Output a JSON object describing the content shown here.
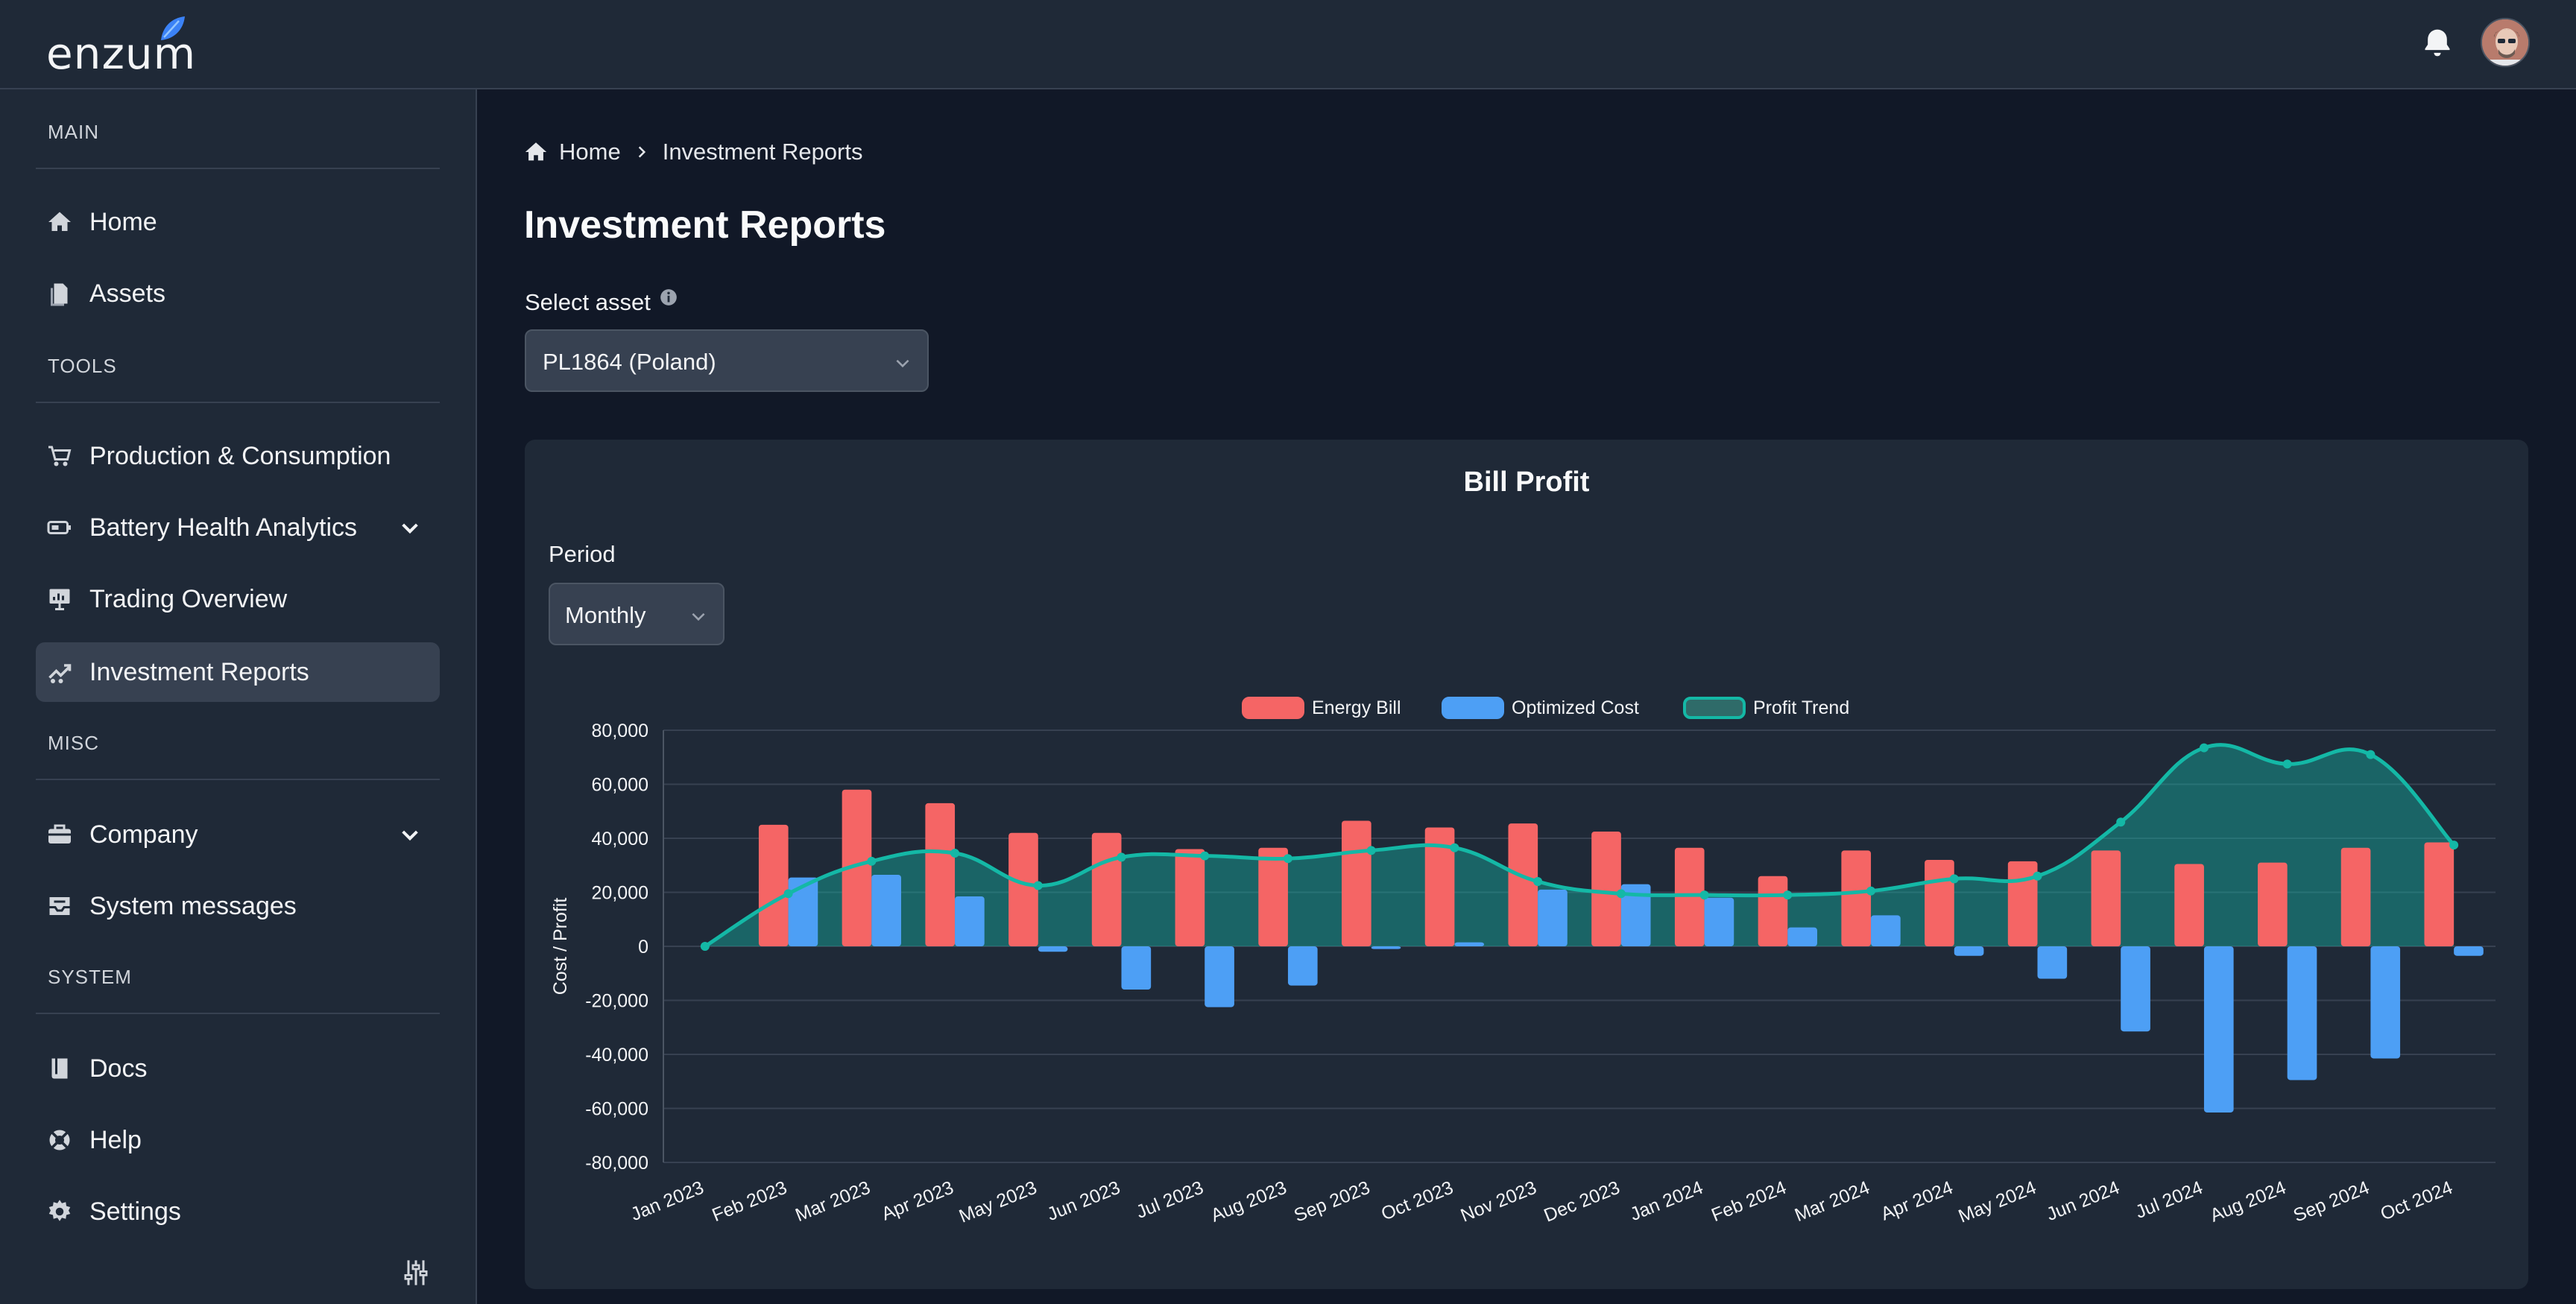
{
  "app": {
    "logo_text": "enzum"
  },
  "topbar": {
    "bell_icon": "bell-icon",
    "avatar_icon": "user-avatar"
  },
  "sidebar": {
    "sections": [
      {
        "label": "MAIN",
        "items": [
          {
            "label": "Home",
            "icon": "home-icon"
          },
          {
            "label": "Assets",
            "icon": "document-icon"
          }
        ]
      },
      {
        "label": "TOOLS",
        "items": [
          {
            "label": "Production & Consumption",
            "icon": "cart-icon"
          },
          {
            "label": "Battery Health Analytics",
            "icon": "battery-icon",
            "expandable": true
          },
          {
            "label": "Trading Overview",
            "icon": "presentation-chart-icon"
          },
          {
            "label": "Investment Reports",
            "icon": "chart-line-icon",
            "active": true
          }
        ]
      },
      {
        "label": "MISC",
        "items": [
          {
            "label": "Company",
            "icon": "briefcase-icon",
            "expandable": true
          },
          {
            "label": "System messages",
            "icon": "inbox-icon"
          }
        ]
      },
      {
        "label": "SYSTEM",
        "items": [
          {
            "label": "Docs",
            "icon": "book-icon"
          },
          {
            "label": "Help",
            "icon": "lifebuoy-icon"
          },
          {
            "label": "Settings",
            "icon": "gear-icon"
          }
        ]
      }
    ]
  },
  "breadcrumb": {
    "home": "Home",
    "current": "Investment Reports"
  },
  "page": {
    "title": "Investment Reports",
    "asset_label": "Select asset",
    "asset_value": "PL1864 (Poland)"
  },
  "card": {
    "title": "Bill Profit",
    "period_label": "Period",
    "period_value": "Monthly"
  },
  "colors": {
    "energy_bill": "#f56565",
    "optimized_cost": "#4d9ff5",
    "profit_trend": "#14b8a6"
  },
  "chart_data": {
    "type": "bar",
    "title": "Bill Profit",
    "ylabel": "Cost / Profit",
    "xlabel": "",
    "ylim": [
      -80000,
      80000
    ],
    "yticks": [
      80000,
      60000,
      40000,
      20000,
      0,
      -20000,
      -40000,
      -60000,
      -80000
    ],
    "ytick_labels": [
      "80,000",
      "60,000",
      "40,000",
      "20,000",
      "0",
      "-20,000",
      "-40,000",
      "-60,000",
      "-80,000"
    ],
    "grid": true,
    "legend": "top-center",
    "categories": [
      "Jan 2023",
      "Feb 2023",
      "Mar 2023",
      "Apr 2023",
      "May 2023",
      "Jun 2023",
      "Jul 2023",
      "Aug 2023",
      "Sep 2023",
      "Oct 2023",
      "Nov 2023",
      "Dec 2023",
      "Jan 2024",
      "Feb 2024",
      "Mar 2024",
      "Apr 2024",
      "May 2024",
      "Jun 2024",
      "Jul 2024",
      "Aug 2024",
      "Sep 2024",
      "Oct 2024"
    ],
    "series": [
      {
        "name": "Energy Bill",
        "type": "bar",
        "values": [
          0,
          45000,
          58000,
          53000,
          42000,
          42000,
          36000,
          36500,
          46500,
          44000,
          45500,
          42500,
          36500,
          26000,
          35500,
          32000,
          31500,
          35500,
          30500,
          31000,
          36500,
          38500
        ]
      },
      {
        "name": "Optimized Cost",
        "type": "bar",
        "values": [
          0,
          25500,
          26500,
          18500,
          -2000,
          -16000,
          -22500,
          -14500,
          -1000,
          1500,
          21000,
          23000,
          18000,
          7000,
          11500,
          -3500,
          -12000,
          -31500,
          -61500,
          -49500,
          -41500,
          -3500
        ]
      },
      {
        "name": "Profit Trend",
        "type": "area",
        "values": [
          0,
          19500,
          31500,
          34500,
          22500,
          33000,
          33500,
          32500,
          35500,
          36500,
          24000,
          19500,
          19000,
          19000,
          20500,
          25000,
          26000,
          46000,
          73500,
          67500,
          71000,
          37500
        ]
      }
    ]
  }
}
